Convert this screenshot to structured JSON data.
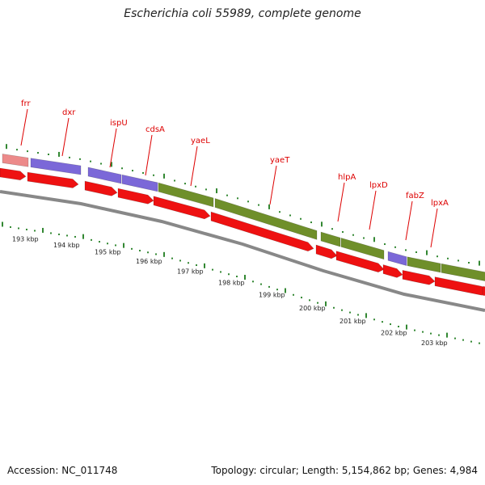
{
  "title": "Escherichia coli 55989, complete genome",
  "footer": {
    "accession": "Accession: NC_011748",
    "summary": "Topology: circular; Length: 5,154,862 bp; Genes: 4,984"
  },
  "colors": {
    "cds_forward_pink": "#ec8a8a",
    "cds_forward_purple": "#7b68d8",
    "cds_forward_green": "#6f8f2a",
    "cds_reverse_red": "#ee1111",
    "backbone": "#888888",
    "gene_label": "#dd0000",
    "tick": "#338833"
  },
  "gene_labels": [
    "frr",
    "dxr",
    "ispU",
    "cdsA",
    "yaeL",
    "yaeT",
    "hlpA",
    "lpxD",
    "fabZ",
    "lpxA"
  ],
  "scale_labels": [
    "193 kbp",
    "194 kbp",
    "195 kbp",
    "196 kbp",
    "197 kbp",
    "198 kbp",
    "199 kbp",
    "200 kbp",
    "201 kbp",
    "202 kbp",
    "203 kbp"
  ]
}
